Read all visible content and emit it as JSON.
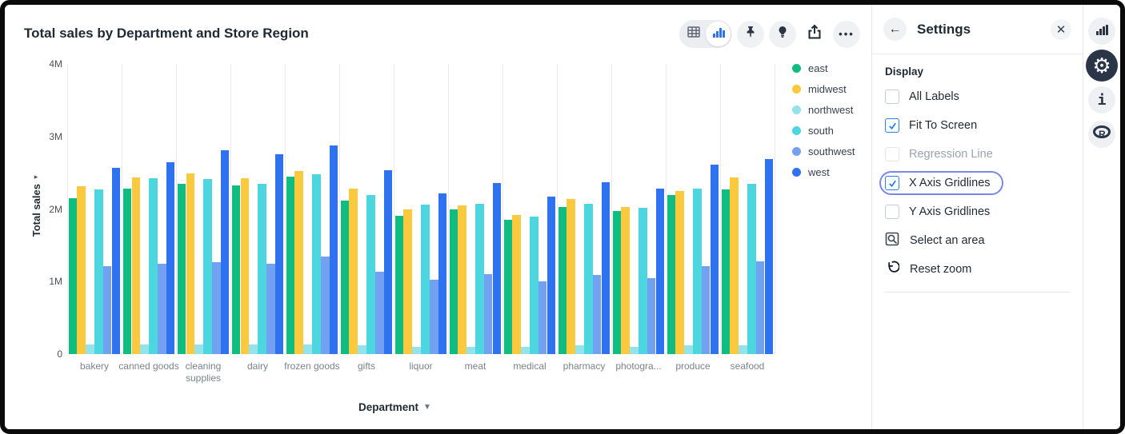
{
  "header": {
    "title": "Total sales by Department and Store Region",
    "toolbar": {
      "table_toggle": "Table view",
      "chart_toggle": "Chart view",
      "pin": "Pin",
      "bulb": "Insights",
      "share": "Share",
      "more": "More options"
    }
  },
  "chart_data": {
    "type": "bar",
    "title": "Total sales by Department and Store Region",
    "xlabel": "Department",
    "ylabel": "Total sales",
    "ylim": [
      0,
      4000000
    ],
    "y_ticks": [
      "0",
      "1M",
      "2M",
      "3M",
      "4M"
    ],
    "x_gridlines": true,
    "y_gridlines": false,
    "legend_position": "right",
    "categories": [
      "bakery",
      "canned goods",
      "cleaning supplies",
      "dairy",
      "frozen goods",
      "gifts",
      "liquor",
      "meat",
      "medical",
      "pharmacy",
      "photogra...",
      "produce",
      "seafood"
    ],
    "series": [
      {
        "name": "east",
        "color": "#10bc80",
        "values": [
          2150000,
          2280000,
          2350000,
          2330000,
          2450000,
          2120000,
          1910000,
          2000000,
          1850000,
          2030000,
          1970000,
          2190000,
          2270000
        ]
      },
      {
        "name": "midwest",
        "color": "#fbc93d",
        "values": [
          2320000,
          2440000,
          2490000,
          2420000,
          2520000,
          2280000,
          2000000,
          2050000,
          1920000,
          2140000,
          2030000,
          2250000,
          2440000
        ]
      },
      {
        "name": "northwest",
        "color": "#93e2ec",
        "values": [
          130000,
          130000,
          130000,
          130000,
          130000,
          120000,
          100000,
          100000,
          100000,
          120000,
          100000,
          120000,
          120000
        ]
      },
      {
        "name": "south",
        "color": "#4cd7e0",
        "values": [
          2270000,
          2430000,
          2410000,
          2350000,
          2480000,
          2190000,
          2060000,
          2070000,
          1900000,
          2070000,
          2020000,
          2280000,
          2350000
        ]
      },
      {
        "name": "southwest",
        "color": "#73a0f0",
        "values": [
          1210000,
          1250000,
          1270000,
          1250000,
          1350000,
          1140000,
          1030000,
          1100000,
          1000000,
          1090000,
          1050000,
          1210000,
          1280000
        ]
      },
      {
        "name": "west",
        "color": "#2f72ef",
        "values": [
          2570000,
          2650000,
          2810000,
          2750000,
          2880000,
          2530000,
          2210000,
          2360000,
          2170000,
          2370000,
          2280000,
          2610000,
          2690000
        ]
      }
    ]
  },
  "settings": {
    "title": "Settings",
    "back_icon": "back-arrow",
    "close_icon": "close",
    "section": "Display",
    "checkboxes": [
      {
        "label": "All Labels",
        "checked": false,
        "disabled": false,
        "focused": false
      },
      {
        "label": "Fit To Screen",
        "checked": true,
        "disabled": false,
        "focused": false
      },
      {
        "label": "Regression Line",
        "checked": false,
        "disabled": true,
        "focused": false
      },
      {
        "label": "X Axis Gridlines",
        "checked": true,
        "disabled": false,
        "focused": true
      },
      {
        "label": "Y Axis Gridlines",
        "checked": false,
        "disabled": false,
        "focused": false
      }
    ],
    "actions": [
      {
        "label": "Select an area",
        "icon": "select-area-icon"
      },
      {
        "label": "Reset zoom",
        "icon": "reset-zoom-icon"
      }
    ]
  },
  "right_rail": {
    "icons": [
      "chart",
      "settings-gear",
      "info",
      "r-logo"
    ],
    "active": "settings-gear"
  },
  "colors": {
    "accent_blue": "#2d7ff9",
    "focus_ring": "#7b87e8",
    "gridline": "#e9ebee",
    "active_rail": "#2a3647"
  }
}
